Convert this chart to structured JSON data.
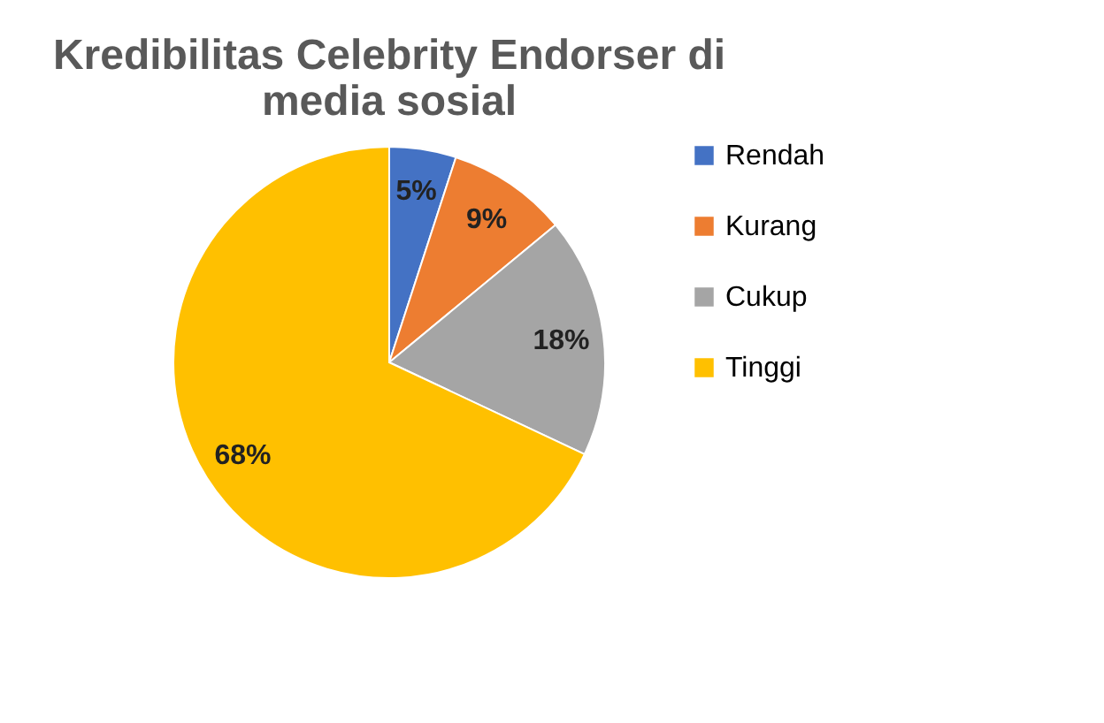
{
  "chart_data": {
    "type": "pie",
    "title": [
      "Kredibilitas Celebrity Endorser di",
      "media sosial"
    ],
    "categories": [
      "Rendah",
      "Kurang",
      "Cukup",
      "Tinggi"
    ],
    "values": [
      5,
      9,
      18,
      68
    ],
    "value_labels": [
      "5%",
      "9%",
      "18%",
      "68%"
    ],
    "colors": [
      "#4472c4",
      "#ed7d31",
      "#a5a5a5",
      "#ffc000"
    ],
    "legend": "right"
  }
}
